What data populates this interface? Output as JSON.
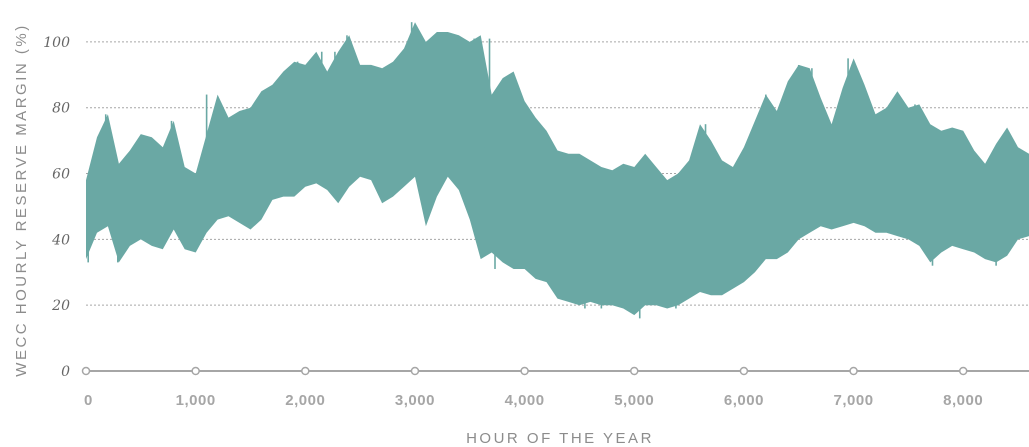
{
  "chart_data": {
    "type": "area",
    "title": "",
    "xlabel": "HOUR OF THE YEAR",
    "ylabel": "WECC HOURLY RESERVE MARGIN (%)",
    "xlim": [
      0,
      8600
    ],
    "ylim": [
      0,
      110
    ],
    "x_ticks": [
      {
        "value": 0,
        "label": "0"
      },
      {
        "value": 1000,
        "label": "1,000"
      },
      {
        "value": 2000,
        "label": "2,000"
      },
      {
        "value": 3000,
        "label": "3,000"
      },
      {
        "value": 4000,
        "label": "4,000"
      },
      {
        "value": 5000,
        "label": "5,000"
      },
      {
        "value": 6000,
        "label": "6,000"
      },
      {
        "value": 7000,
        "label": "7,000"
      },
      {
        "value": 8000,
        "label": "8,000"
      }
    ],
    "y_ticks": [
      {
        "value": 0,
        "label": "0"
      },
      {
        "value": 20,
        "label": "20"
      },
      {
        "value": 40,
        "label": "40"
      },
      {
        "value": 60,
        "label": "60"
      },
      {
        "value": 80,
        "label": "80"
      },
      {
        "value": 100,
        "label": "100"
      }
    ],
    "grid": "horizontal-dashed",
    "series": [
      {
        "color": "#6aa8a4",
        "hours": [
          0,
          100,
          200,
          300,
          400,
          500,
          600,
          700,
          800,
          900,
          1000,
          1100,
          1200,
          1300,
          1400,
          1500,
          1600,
          1700,
          1800,
          1900,
          2000,
          2100,
          2200,
          2300,
          2400,
          2500,
          2600,
          2700,
          2800,
          2900,
          3000,
          3100,
          3200,
          3300,
          3400,
          3500,
          3600,
          3700,
          3800,
          3900,
          4000,
          4100,
          4200,
          4300,
          4400,
          4500,
          4600,
          4700,
          4800,
          4900,
          5000,
          5100,
          5200,
          5300,
          5400,
          5500,
          5600,
          5700,
          5800,
          5900,
          6000,
          6100,
          6200,
          6300,
          6400,
          6500,
          6600,
          6700,
          6800,
          6900,
          7000,
          7100,
          7200,
          7300,
          7400,
          7500,
          7600,
          7700,
          7800,
          7900,
          8000,
          8100,
          8200,
          8300,
          8400,
          8500,
          8600
        ],
        "min": [
          34,
          42,
          44,
          33,
          38,
          40,
          38,
          37,
          43,
          37,
          36,
          42,
          46,
          47,
          45,
          43,
          46,
          52,
          53,
          53,
          56,
          57,
          55,
          51,
          56,
          59,
          58,
          51,
          53,
          56,
          59,
          44,
          53,
          59,
          55,
          46,
          34,
          36,
          33,
          31,
          31,
          28,
          27,
          22,
          21,
          20,
          21,
          20,
          20,
          19,
          17,
          20,
          20,
          19,
          20,
          22,
          24,
          23,
          23,
          25,
          27,
          30,
          34,
          34,
          36,
          40,
          42,
          44,
          43,
          44,
          45,
          44,
          42,
          42,
          41,
          40,
          38,
          33,
          36,
          38,
          37,
          36,
          34,
          33,
          35,
          40,
          41
        ],
        "max": [
          58,
          71,
          78,
          63,
          67,
          72,
          71,
          68,
          76,
          62,
          60,
          72,
          84,
          77,
          79,
          80,
          85,
          87,
          91,
          94,
          93,
          97,
          91,
          97,
          102,
          93,
          93,
          92,
          94,
          98,
          106,
          100,
          103,
          103,
          102,
          100,
          102,
          84,
          89,
          91,
          82,
          77,
          73,
          67,
          66,
          66,
          64,
          62,
          61,
          63,
          62,
          66,
          62,
          58,
          60,
          64,
          75,
          70,
          64,
          62,
          68,
          76,
          84,
          79,
          88,
          93,
          92,
          83,
          75,
          86,
          95,
          87,
          78,
          80,
          85,
          80,
          81,
          75,
          73,
          74,
          73,
          67,
          63,
          69,
          74,
          68,
          66
        ]
      }
    ],
    "spikes": [
      {
        "x": 20,
        "y": 33
      },
      {
        "x": 180,
        "y": 78
      },
      {
        "x": 290,
        "y": 33
      },
      {
        "x": 780,
        "y": 76
      },
      {
        "x": 1100,
        "y": 84
      },
      {
        "x": 1700,
        "y": 86
      },
      {
        "x": 1930,
        "y": 94
      },
      {
        "x": 2150,
        "y": 97
      },
      {
        "x": 2270,
        "y": 97
      },
      {
        "x": 2380,
        "y": 102
      },
      {
        "x": 2970,
        "y": 106
      },
      {
        "x": 3100,
        "y": 99
      },
      {
        "x": 3250,
        "y": 102
      },
      {
        "x": 3380,
        "y": 102
      },
      {
        "x": 3540,
        "y": 101
      },
      {
        "x": 3630,
        "y": 35
      },
      {
        "x": 3680,
        "y": 101
      },
      {
        "x": 3730,
        "y": 31
      },
      {
        "x": 4550,
        "y": 19
      },
      {
        "x": 4700,
        "y": 19
      },
      {
        "x": 5050,
        "y": 16
      },
      {
        "x": 5380,
        "y": 19
      },
      {
        "x": 5650,
        "y": 75
      },
      {
        "x": 6200,
        "y": 84
      },
      {
        "x": 6500,
        "y": 93
      },
      {
        "x": 6620,
        "y": 92
      },
      {
        "x": 6950,
        "y": 95
      },
      {
        "x": 7560,
        "y": 81
      },
      {
        "x": 7720,
        "y": 32
      },
      {
        "x": 8300,
        "y": 32
      }
    ],
    "ytick_dots": "x-axis-circles"
  }
}
